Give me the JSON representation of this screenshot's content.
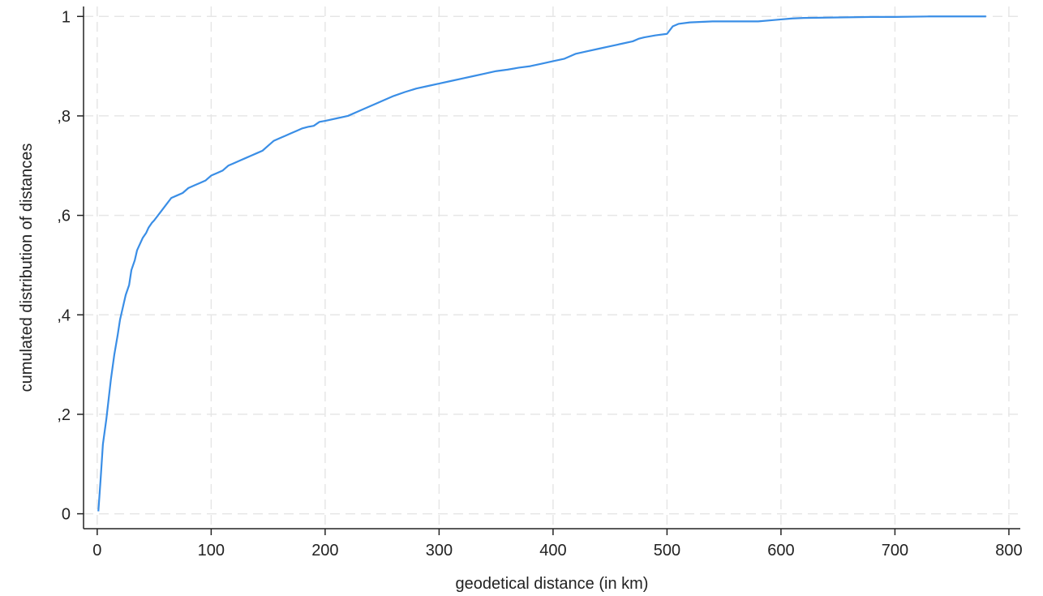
{
  "chart_data": {
    "type": "line",
    "xlabel": "geodetical distance (in km)",
    "ylabel": "cumulated distribution of distances",
    "xlim": [
      -12,
      810
    ],
    "ylim": [
      -0.03,
      1.02
    ],
    "x_ticks": [
      0,
      100,
      200,
      300,
      400,
      500,
      600,
      700,
      800
    ],
    "x_tick_labels": [
      "0",
      "100",
      "200",
      "300",
      "400",
      "500",
      "600",
      "700",
      "800"
    ],
    "y_ticks": [
      0,
      0.2,
      0.4,
      0.6,
      0.8,
      1
    ],
    "y_tick_labels": [
      "0",
      ",2",
      ",4",
      ",6",
      ",8",
      "1"
    ],
    "grid": true,
    "line_color": "#3a8ee6",
    "series": [
      {
        "x": [
          1,
          3,
          5,
          8,
          10,
          12,
          15,
          18,
          20,
          23,
          25,
          28,
          30,
          33,
          35,
          38,
          40,
          43,
          45,
          48,
          50,
          55,
          60,
          65,
          70,
          75,
          80,
          85,
          90,
          95,
          100,
          105,
          110,
          115,
          120,
          125,
          130,
          135,
          140,
          145,
          150,
          155,
          160,
          165,
          170,
          175,
          180,
          185,
          190,
          195,
          200,
          210,
          220,
          230,
          240,
          250,
          260,
          270,
          280,
          290,
          300,
          310,
          320,
          330,
          340,
          350,
          360,
          370,
          380,
          390,
          400,
          410,
          420,
          430,
          440,
          450,
          460,
          470,
          475,
          480,
          490,
          500,
          505,
          510,
          520,
          530,
          540,
          550,
          560,
          570,
          580,
          590,
          600,
          610,
          620,
          650,
          680,
          700,
          730,
          750,
          780
        ],
        "y": [
          0.005,
          0.07,
          0.14,
          0.19,
          0.23,
          0.27,
          0.32,
          0.36,
          0.39,
          0.42,
          0.44,
          0.46,
          0.49,
          0.51,
          0.53,
          0.545,
          0.555,
          0.565,
          0.575,
          0.585,
          0.59,
          0.605,
          0.62,
          0.635,
          0.64,
          0.645,
          0.655,
          0.66,
          0.665,
          0.67,
          0.68,
          0.685,
          0.69,
          0.7,
          0.705,
          0.71,
          0.715,
          0.72,
          0.725,
          0.73,
          0.74,
          0.75,
          0.755,
          0.76,
          0.765,
          0.77,
          0.775,
          0.778,
          0.78,
          0.788,
          0.79,
          0.795,
          0.8,
          0.81,
          0.82,
          0.83,
          0.84,
          0.848,
          0.855,
          0.86,
          0.865,
          0.87,
          0.875,
          0.88,
          0.885,
          0.89,
          0.893,
          0.897,
          0.9,
          0.905,
          0.91,
          0.915,
          0.925,
          0.93,
          0.935,
          0.94,
          0.945,
          0.95,
          0.955,
          0.958,
          0.962,
          0.965,
          0.98,
          0.985,
          0.988,
          0.989,
          0.99,
          0.99,
          0.99,
          0.99,
          0.99,
          0.992,
          0.994,
          0.996,
          0.997,
          0.998,
          0.999,
          0.999,
          1.0,
          1.0,
          1.0
        ]
      }
    ]
  }
}
